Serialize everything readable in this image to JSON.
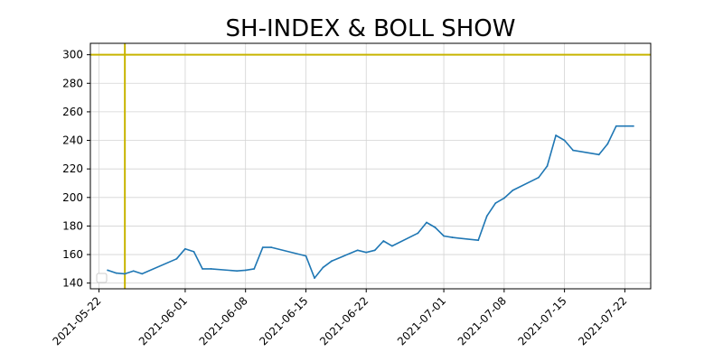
{
  "chart_data": {
    "type": "line",
    "title": "SH-INDEX   &   BOLL SHOW",
    "xlabel": "",
    "ylabel": "",
    "grid": true,
    "legend": {
      "placement": "lower-left",
      "entries": []
    },
    "colors": {
      "series": "#1f77b4",
      "reference": "#c8b400",
      "grid": "#d3d3d3"
    },
    "xlim": [
      "2021-05-21",
      "2021-07-25"
    ],
    "ylim": [
      136,
      308
    ],
    "x_tick_labels": [
      "2021-05-22",
      "2021-06-01",
      "2021-06-08",
      "2021-06-15",
      "2021-06-22",
      "2021-07-01",
      "2021-07-08",
      "2021-07-15",
      "2021-07-22"
    ],
    "y_tick_labels": [
      "140",
      "160",
      "180",
      "200",
      "220",
      "240",
      "260",
      "280",
      "300"
    ],
    "reference_lines": [
      {
        "orientation": "horizontal",
        "y": 300
      },
      {
        "orientation": "vertical",
        "x": "2021-05-25"
      }
    ],
    "series": [
      {
        "x": [
          "2021-05-23",
          "2021-05-24",
          "2021-05-25",
          "2021-05-26",
          "2021-05-27",
          "2021-05-31",
          "2021-06-01",
          "2021-06-02",
          "2021-06-03",
          "2021-06-04",
          "2021-06-07",
          "2021-06-08",
          "2021-06-09",
          "2021-06-10",
          "2021-06-11",
          "2021-06-15",
          "2021-06-16",
          "2021-06-17",
          "2021-06-18",
          "2021-06-21",
          "2021-06-22",
          "2021-06-23",
          "2021-06-24",
          "2021-06-25",
          "2021-06-28",
          "2021-06-29",
          "2021-06-30",
          "2021-07-01",
          "2021-07-02",
          "2021-07-05",
          "2021-07-06",
          "2021-07-07",
          "2021-07-08",
          "2021-07-09",
          "2021-07-12",
          "2021-07-13",
          "2021-07-14",
          "2021-07-15",
          "2021-07-16",
          "2021-07-19",
          "2021-07-20",
          "2021-07-21",
          "2021-07-22",
          "2021-07-23"
        ],
        "values": [
          149,
          147,
          146.5,
          148.5,
          146.5,
          157,
          164,
          162,
          150,
          150,
          148.5,
          149,
          150,
          165,
          165,
          159,
          143.5,
          151,
          155.5,
          163,
          161.5,
          163,
          169.5,
          166,
          175,
          182.5,
          179,
          173,
          172,
          170,
          187,
          196,
          199.5,
          205,
          214,
          222,
          243.5,
          240,
          233,
          230,
          237.5,
          250,
          250,
          250
        ]
      }
    ]
  }
}
